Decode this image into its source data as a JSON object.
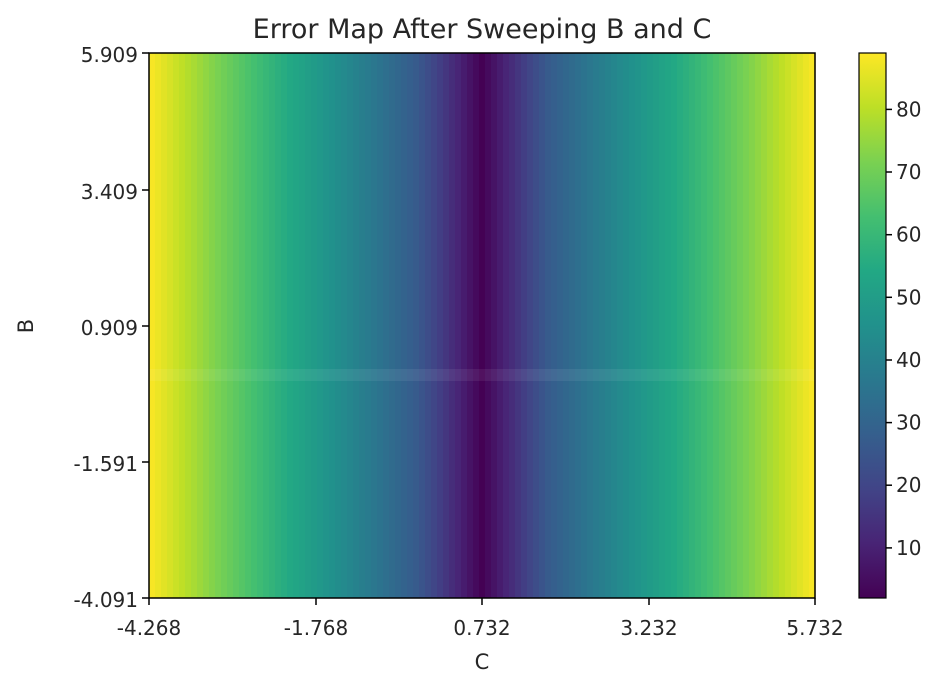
{
  "chart_data": {
    "type": "heatmap",
    "title": "Error Map After Sweeping B and C",
    "xlabel": "C",
    "ylabel": "B",
    "xlim": [
      -4.268,
      5.732
    ],
    "ylim": [
      -4.091,
      5.909
    ],
    "x_ticks": [
      "-4.268",
      "-1.768",
      "0.732",
      "3.232",
      "5.732"
    ],
    "y_ticks": [
      "-4.091",
      "-1.591",
      "0.909",
      "3.409",
      "5.909"
    ],
    "colormap": "viridis",
    "colorbar": {
      "range": [
        2,
        89
      ],
      "ticks": [
        "10",
        "20",
        "30",
        "40",
        "50",
        "60",
        "70",
        "80"
      ]
    },
    "value_profile_along_C": {
      "x": [
        -4.268,
        -3.268,
        -2.268,
        -1.268,
        -0.268,
        0.732,
        1.732,
        2.732,
        3.732,
        4.732,
        5.732
      ],
      "values": [
        89,
        72,
        56,
        42,
        27,
        2,
        27,
        42,
        56,
        72,
        89
      ]
    },
    "annotation_band_B": 0.0
  }
}
